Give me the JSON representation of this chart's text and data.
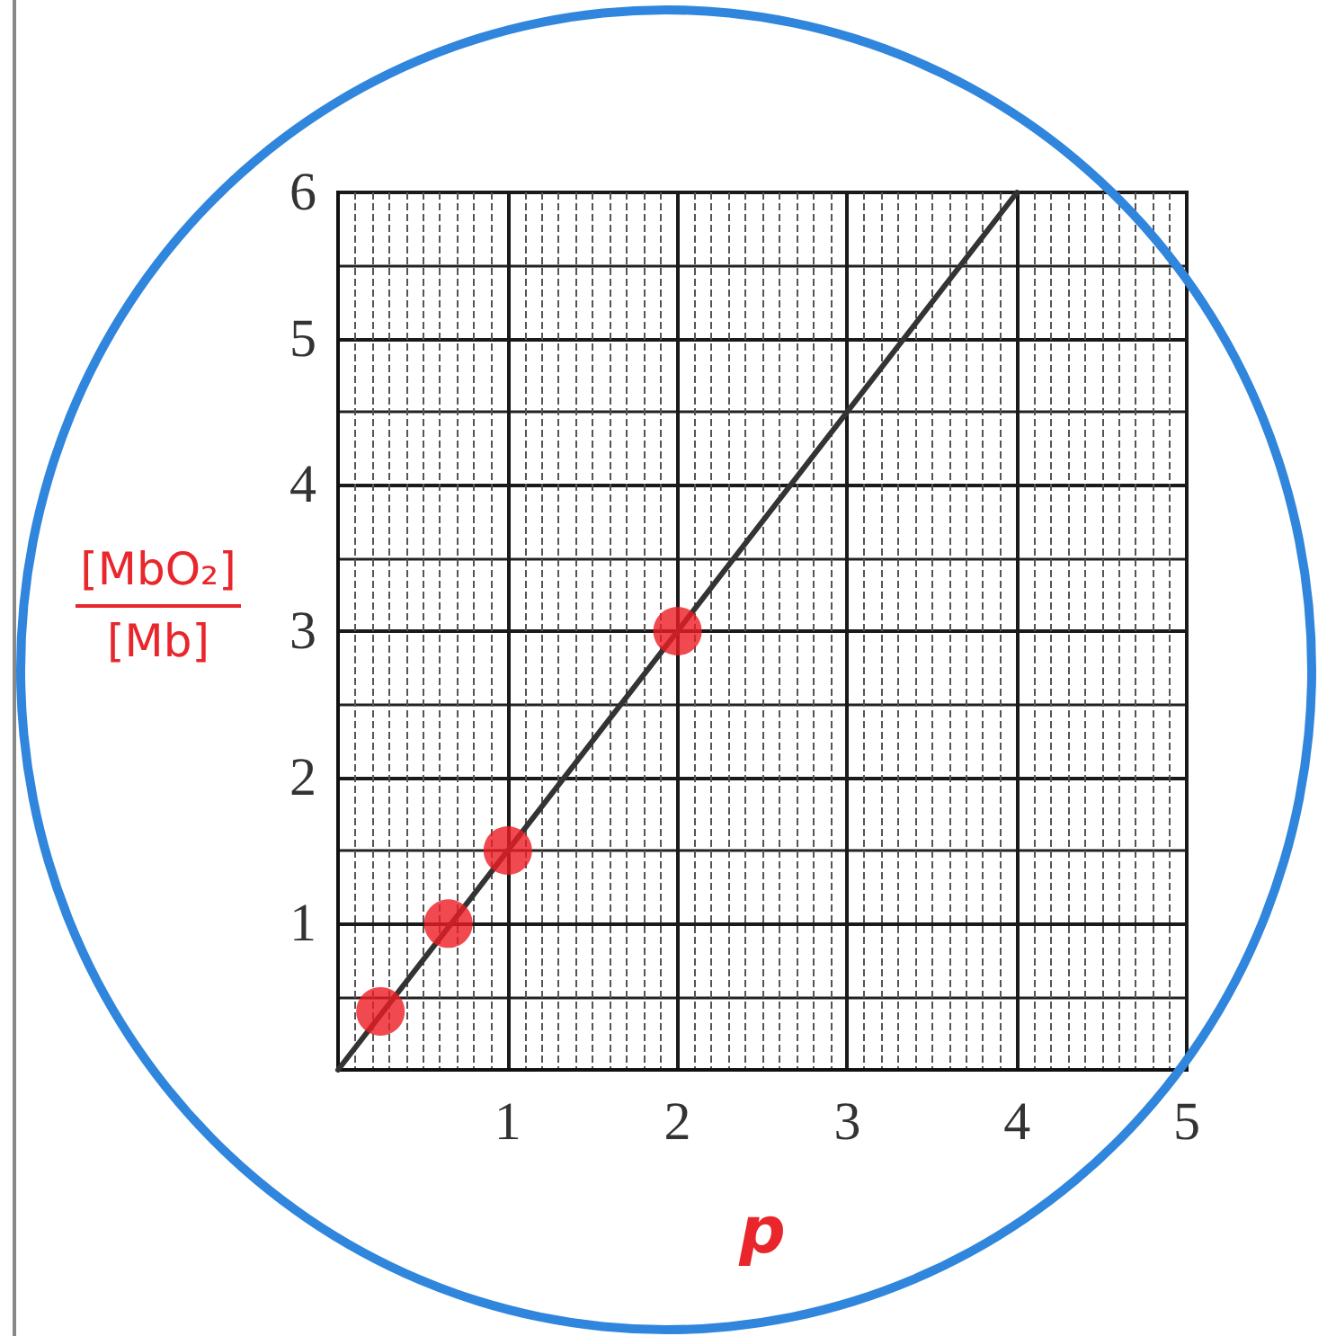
{
  "chart_data": {
    "type": "scatter",
    "xlabel": "p",
    "ylabel": "[MbO₂]\n[Mb]",
    "series": [
      {
        "color": "#ee1c24",
        "x": [
          0.25,
          0.65,
          1,
          2
        ],
        "values": [
          0.4,
          1,
          1.5,
          3
        ]
      },
      {
        "type": "line",
        "color": "#333333",
        "x": [
          0,
          4
        ],
        "values": [
          0,
          6
        ],
        "marker": "none"
      }
    ],
    "xlim": [
      0,
      5
    ],
    "xticks": [
      1,
      2,
      3,
      4,
      5
    ],
    "ylim": [
      0,
      6
    ],
    "yticks": [
      1,
      2,
      3,
      4,
      5,
      6
    ],
    "grid": true,
    "marker": "circle"
  }
}
